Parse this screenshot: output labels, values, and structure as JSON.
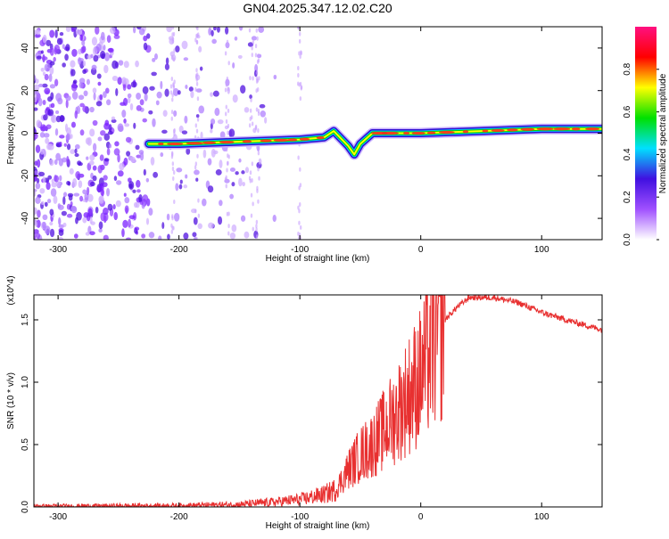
{
  "title": "GN04.2025.347.12.02.C20",
  "chart_data": [
    {
      "type": "heatmap",
      "title": "GN04.2025.347.12.02.C20",
      "xlabel": "Height of straight line (km)",
      "ylabel": "Frequency (Hz)",
      "xlim": [
        -320,
        150
      ],
      "ylim": [
        -50,
        50
      ],
      "x_ticks": [
        -300,
        -200,
        -100,
        0,
        100
      ],
      "y_ticks": [
        -40,
        -20,
        0,
        20,
        40
      ],
      "colorbar": {
        "label": "Normalized spectral amplitude",
        "range": [
          0,
          1
        ],
        "ticks": [
          "0.0",
          "0.2",
          "0.4",
          "0.6",
          "0.8"
        ],
        "colors": [
          "#ffffff",
          "#a050ff",
          "#4010e0",
          "#00e0ff",
          "#00e000",
          "#ffff00",
          "#ff0000",
          "#ff1080"
        ]
      },
      "ridge": {
        "x": [
          -225,
          -200,
          -150,
          -100,
          -80,
          -72,
          -60,
          -55,
          -50,
          -40,
          -20,
          0,
          50,
          100,
          150
        ],
        "y": [
          -5,
          -5,
          -4,
          -3,
          -2,
          1,
          -6,
          -10,
          -5,
          0,
          0,
          0,
          1,
          2,
          2
        ]
      }
    },
    {
      "type": "line",
      "xlabel": "Height of straight line (km)",
      "ylabel": "SNR (10 * v/v)",
      "y_multiplier": "(x10^4)",
      "xlim": [
        -320,
        150
      ],
      "ylim": [
        0,
        1.7
      ],
      "x_ticks": [
        -300,
        -200,
        -100,
        0,
        100
      ],
      "y_ticks": [
        "0.0",
        "0.5",
        "1.0",
        "1.5"
      ],
      "line_color": "#e83030",
      "x": [
        -320,
        -300,
        -250,
        -200,
        -150,
        -120,
        -100,
        -80,
        -70,
        -60,
        -50,
        -40,
        -30,
        -20,
        -10,
        0,
        10,
        20,
        30,
        40,
        60,
        80,
        100,
        120,
        150
      ],
      "y": [
        0.005,
        0.006,
        0.008,
        0.01,
        0.02,
        0.04,
        0.06,
        0.1,
        0.14,
        0.3,
        0.42,
        0.5,
        0.62,
        0.75,
        0.9,
        1.05,
        1.3,
        1.5,
        1.6,
        1.68,
        1.68,
        1.64,
        1.56,
        1.5,
        1.42
      ]
    }
  ]
}
